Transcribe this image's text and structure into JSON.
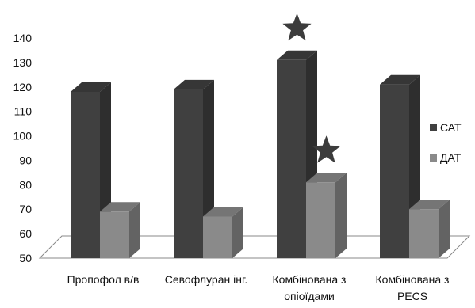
{
  "chart_data": {
    "type": "bar",
    "style": "3d-clustered-column",
    "categories": [
      [
        "Пропофол в/в"
      ],
      [
        "Севофлуран інг."
      ],
      [
        "Комбінована з",
        "опіоїдами"
      ],
      [
        "Комбінована з",
        "PECS"
      ]
    ],
    "series": [
      {
        "name": "САТ",
        "color": "#404040",
        "values": [
          118,
          119,
          131,
          121
        ]
      },
      {
        "name": "ДАТ",
        "color": "#8a8a8a",
        "values": [
          69,
          67,
          81,
          70
        ]
      }
    ],
    "ylim": [
      50,
      140
    ],
    "yticks": [
      50,
      60,
      70,
      80,
      90,
      100,
      110,
      120,
      130,
      140
    ],
    "grid": false,
    "legend_position": "right",
    "significance_markers": [
      {
        "category_index": 2,
        "series_index": 0,
        "symbol": "star-icon"
      },
      {
        "category_index": 2,
        "series_index": 1,
        "symbol": "star-icon"
      }
    ],
    "colors": {
      "star": "#3c3c3c",
      "floor": "#ffffff",
      "axis": "#888888"
    }
  }
}
